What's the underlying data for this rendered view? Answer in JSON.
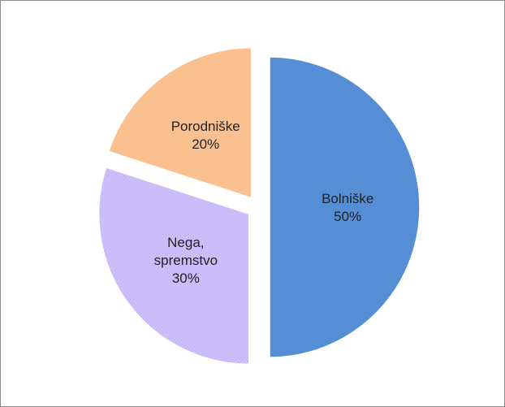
{
  "chart_data": {
    "type": "pie",
    "title": "",
    "legend": "none",
    "slices": [
      {
        "name": "Bolniške",
        "value": 50,
        "label_lines": [
          "Bolniške",
          "50%"
        ],
        "color": "#558ed5",
        "exploded": true
      },
      {
        "name": "Nega, spremstvo",
        "value": 30,
        "label_lines": [
          "Nega,",
          "spremstvo",
          "30%"
        ],
        "color": "#ccc0f5",
        "exploded": true
      },
      {
        "name": "Porodniške",
        "value": 20,
        "label_lines": [
          "Porodniške",
          "20%"
        ],
        "color": "#fac090",
        "exploded": true
      }
    ]
  }
}
